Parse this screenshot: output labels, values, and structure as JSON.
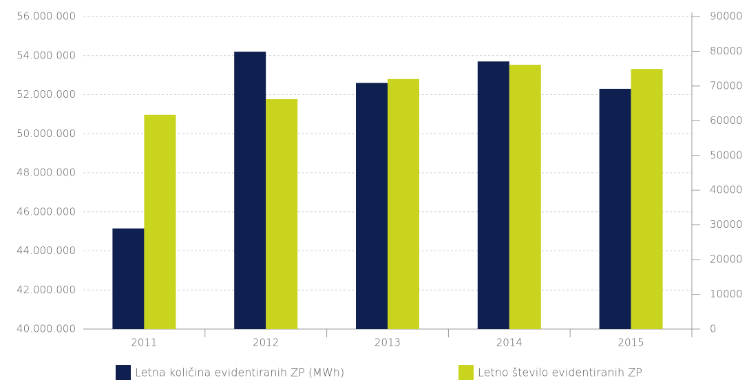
{
  "chart_data": {
    "type": "bar",
    "categories": [
      "2011",
      "2012",
      "2013",
      "2014",
      "2015"
    ],
    "series": [
      {
        "name": "Letna količina evidentiranih ZP (MWh)",
        "color": "#0f1f4f",
        "values": [
          45150000,
          54200000,
          52600000,
          53700000,
          52300000
        ]
      },
      {
        "name": "Letno število evidentiranih ZP",
        "color": "#c8d41e",
        "axis": "y2",
        "values": [
          61700,
          66200,
          72000,
          76100,
          74900
        ]
      }
    ],
    "ylim": [
      40000000,
      56000000
    ],
    "yticks": [
      {
        "value": 40000000,
        "label": "40.000.000"
      },
      {
        "value": 42000000,
        "label": "42.000.000"
      },
      {
        "value": 44000000,
        "label": "44.000.000"
      },
      {
        "value": 46000000,
        "label": "46.000.000"
      },
      {
        "value": 48000000,
        "label": "48.000.000"
      },
      {
        "value": 50000000,
        "label": "50.000.000"
      },
      {
        "value": 52000000,
        "label": "52.000.000"
      },
      {
        "value": 54000000,
        "label": "54.000.000"
      },
      {
        "value": 56000000,
        "label": "56.000.000"
      }
    ],
    "y2lim": [
      0,
      90000
    ],
    "y2ticks": [
      0,
      10000,
      20000,
      30000,
      40000,
      50000,
      60000,
      70000,
      80000,
      90000
    ],
    "grid": true,
    "legend": "bottom"
  }
}
